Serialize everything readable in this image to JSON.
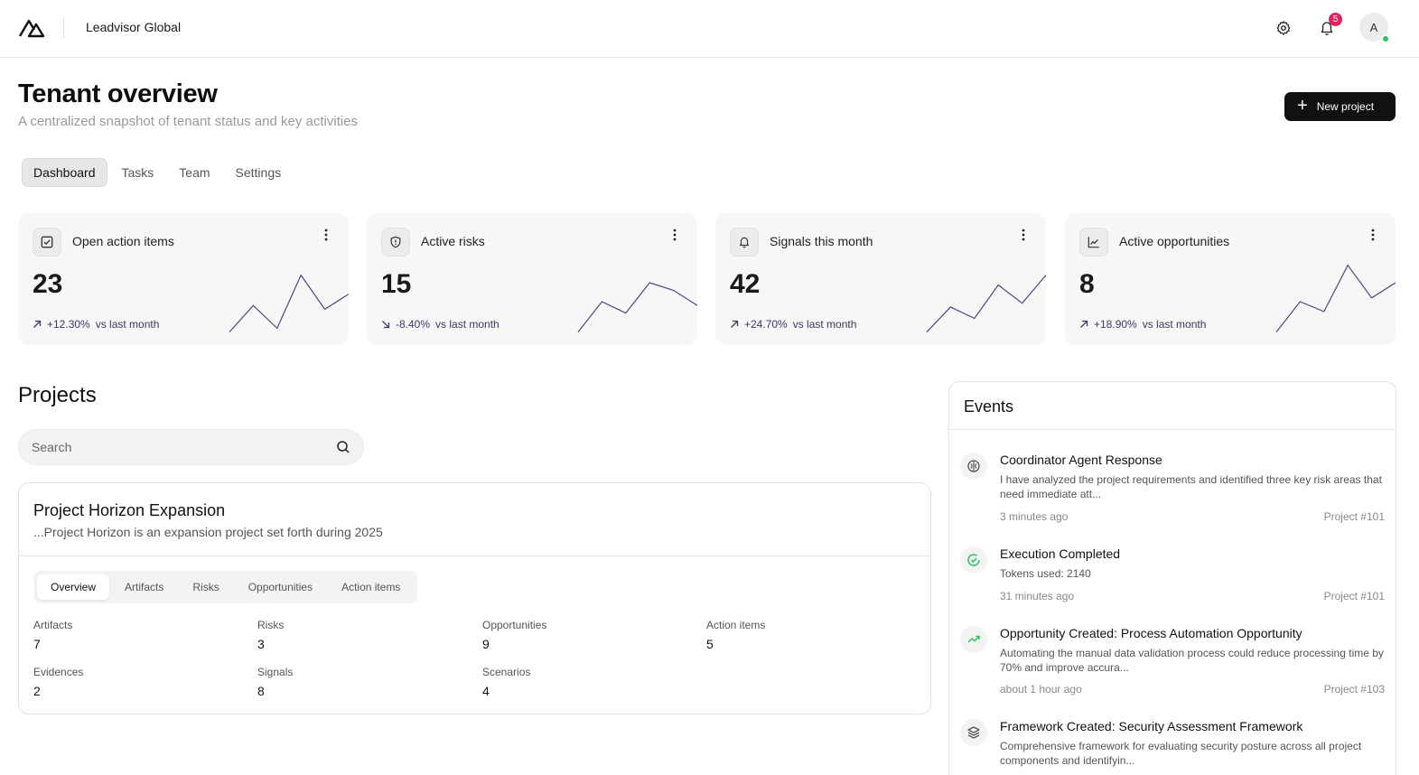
{
  "header": {
    "org_name": "Leadvisor Global",
    "notification_count": "5",
    "avatar_initial": "A"
  },
  "page": {
    "title": "Tenant overview",
    "subtitle": "A centralized snapshot of tenant status and key activities",
    "new_project_label": "New project"
  },
  "tabs": [
    {
      "label": "Dashboard",
      "active": true
    },
    {
      "label": "Tasks",
      "active": false
    },
    {
      "label": "Team",
      "active": false
    },
    {
      "label": "Settings",
      "active": false
    }
  ],
  "stats": [
    {
      "icon": "checkbox-icon",
      "label": "Open action items",
      "value": "23",
      "trend": "+12.30%",
      "trend_suffix": "vs last month",
      "direction": "up",
      "spark": [
        10,
        45,
        15,
        85,
        40,
        60
      ]
    },
    {
      "icon": "shield-icon",
      "label": "Active risks",
      "value": "15",
      "trend": "-8.40%",
      "trend_suffix": "vs last month",
      "direction": "down",
      "spark": [
        10,
        50,
        35,
        75,
        65,
        45
      ]
    },
    {
      "icon": "bell-icon",
      "label": "Signals this month",
      "value": "42",
      "trend": "+24.70%",
      "trend_suffix": "vs last month",
      "direction": "up",
      "spark": [
        10,
        43,
        28,
        72,
        48,
        85
      ]
    },
    {
      "icon": "chart-icon",
      "label": "Active opportunities",
      "value": "8",
      "trend": "+18.90%",
      "trend_suffix": "vs last month",
      "direction": "up",
      "spark": [
        10,
        50,
        37,
        98,
        55,
        75
      ]
    }
  ],
  "projects": {
    "title": "Projects",
    "search_placeholder": "Search",
    "card": {
      "name": "Project Horizon Expansion",
      "description": "...Project Horizon is an expansion project set forth during 2025",
      "subtabs": [
        {
          "label": "Overview",
          "active": true
        },
        {
          "label": "Artifacts",
          "active": false
        },
        {
          "label": "Risks",
          "active": false
        },
        {
          "label": "Opportunities",
          "active": false
        },
        {
          "label": "Action items",
          "active": false
        }
      ],
      "metrics": [
        {
          "label": "Artifacts",
          "value": "7"
        },
        {
          "label": "Risks",
          "value": "3"
        },
        {
          "label": "Opportunities",
          "value": "9"
        },
        {
          "label": "Action items",
          "value": "5"
        },
        {
          "label": "Evidences",
          "value": "2"
        },
        {
          "label": "Signals",
          "value": "8"
        },
        {
          "label": "Scenarios",
          "value": "4"
        }
      ]
    }
  },
  "events": {
    "title": "Events",
    "items": [
      {
        "icon": "brain-icon",
        "icon_color": "#555555",
        "title": "Coordinator Agent Response",
        "body": "I have analyzed the project requirements and identified three key risk areas that need immediate att...",
        "time": "3 minutes ago",
        "project": "Project #101"
      },
      {
        "icon": "check-circle-icon",
        "icon_color": "#22c55e",
        "title": "Execution Completed",
        "body": "Tokens used: 2140",
        "time": "31 minutes ago",
        "project": "Project #101"
      },
      {
        "icon": "trending-up-icon",
        "icon_color": "#22c55e",
        "title": "Opportunity Created: Process Automation Opportunity",
        "body": "Automating the manual data validation process could reduce processing time by 70% and improve accura...",
        "time": "about 1 hour ago",
        "project": "Project #103"
      },
      {
        "icon": "layers-icon",
        "icon_color": "#555555",
        "title": "Framework Created: Security Assessment Framework",
        "body": "Comprehensive framework for evaluating security posture across all project components and identifyin...",
        "time": "",
        "project": ""
      }
    ]
  }
}
